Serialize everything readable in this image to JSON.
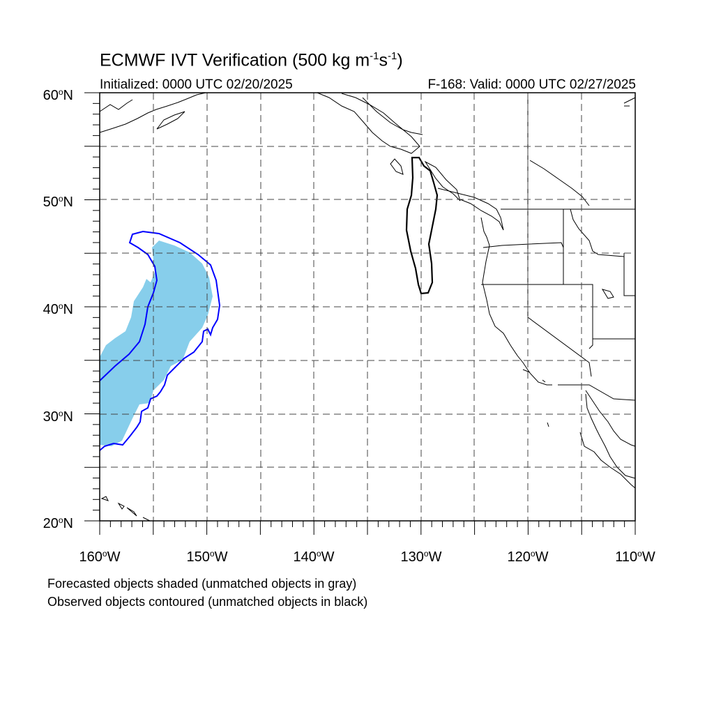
{
  "header": {
    "title_main": "ECMWF IVT Verification (500 kg m",
    "title_exp1": "-1",
    "title_mid": "s",
    "title_exp2": "-1",
    "title_end": ")",
    "initialized": "Initialized: 0000 UTC 02/20/2025",
    "valid": "F-168: Valid: 0000 UTC 02/27/2025"
  },
  "map": {
    "lon_range": [
      -160,
      -110
    ],
    "lat_range": [
      20,
      60
    ],
    "gridlines": "dashed",
    "lat_labels": [
      "60",
      "50",
      "40",
      "30",
      "20"
    ],
    "lat_suffix": "N",
    "lon_labels": [
      "160",
      "150",
      "140",
      "130",
      "120",
      "110"
    ],
    "lon_suffix": "W",
    "colors": {
      "forecast_fill": "#87ceeb",
      "observed_contour": "#0000ff",
      "unmatched_contour": "#000000",
      "coastline": "#000000"
    }
  },
  "footer": {
    "line1": "Forecasted objects shaded (unmatched objects in gray)",
    "line2": "Observed objects contoured (unmatched objects in black)"
  }
}
